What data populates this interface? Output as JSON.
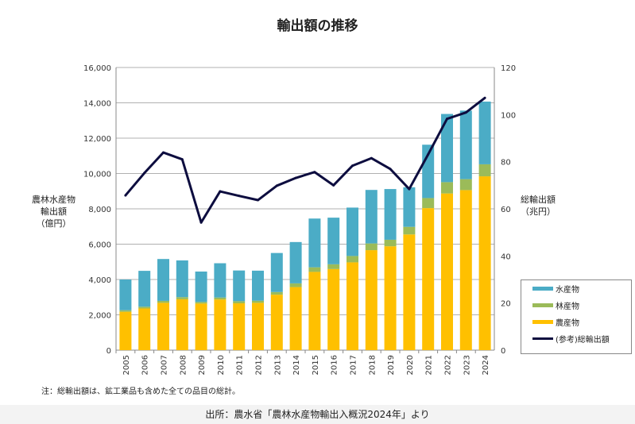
{
  "chart_data": {
    "type": "bar",
    "title": "輸出額の推移",
    "categories": [
      "2005",
      "2006",
      "2007",
      "2008",
      "2009",
      "2010",
      "2011",
      "2012",
      "2013",
      "2014",
      "2015",
      "2016",
      "2017",
      "2018",
      "2019",
      "2020",
      "2021",
      "2022",
      "2023",
      "2024"
    ],
    "series": [
      {
        "name": "農産物",
        "type": "stacked-bar",
        "axis": "left",
        "color": "#ffc000",
        "values": [
          2170,
          2360,
          2680,
          2880,
          2640,
          2870,
          2650,
          2680,
          3140,
          3570,
          4430,
          4590,
          4970,
          5660,
          5880,
          6550,
          8040,
          8870,
          9060,
          9840
        ]
      },
      {
        "name": "林産物",
        "type": "stacked-bar",
        "axis": "left",
        "color": "#9bbb59",
        "values": [
          90,
          100,
          110,
          120,
          90,
          110,
          120,
          120,
          150,
          210,
          260,
          270,
          360,
          380,
          370,
          430,
          570,
          640,
          620,
          680
        ]
      },
      {
        "name": "水産物",
        "type": "stacked-bar",
        "axis": "left",
        "color": "#4bacc6",
        "values": [
          1740,
          2030,
          2370,
          2080,
          1720,
          1940,
          1740,
          1700,
          2210,
          2340,
          2760,
          2640,
          2740,
          3030,
          2870,
          2240,
          3020,
          3860,
          3880,
          3550
        ]
      },
      {
        "name": "(参考)総輸出額",
        "type": "line",
        "axis": "right",
        "color": "#0d0d3f",
        "values": [
          65.7,
          75.2,
          83.9,
          81.0,
          54.2,
          67.4,
          65.5,
          63.7,
          69.8,
          73.1,
          75.6,
          70.0,
          78.3,
          81.5,
          76.9,
          68.4,
          83.1,
          98.2,
          100.9,
          107.1
        ]
      }
    ],
    "ylabel_left": [
      "農林水産物",
      "輸出額",
      "（億円）"
    ],
    "ylabel_right": [
      "総輸出額",
      "（兆円）"
    ],
    "ylim_left": [
      0,
      16000
    ],
    "ylim_right": [
      0,
      120
    ],
    "yticks_left": [
      "0",
      "2,000",
      "4,000",
      "6,000",
      "8,000",
      "10,000",
      "12,000",
      "14,000",
      "16,000"
    ],
    "yticks_right": [
      "0",
      "20",
      "40",
      "60",
      "80",
      "100",
      "120"
    ],
    "grid": true,
    "legend_position": "right"
  },
  "note": "注：総輸出額は、鉱工業品も含めた全ての品目の総計。",
  "source": "出所：農水省「農林水産物輸出入概況2024年」より"
}
